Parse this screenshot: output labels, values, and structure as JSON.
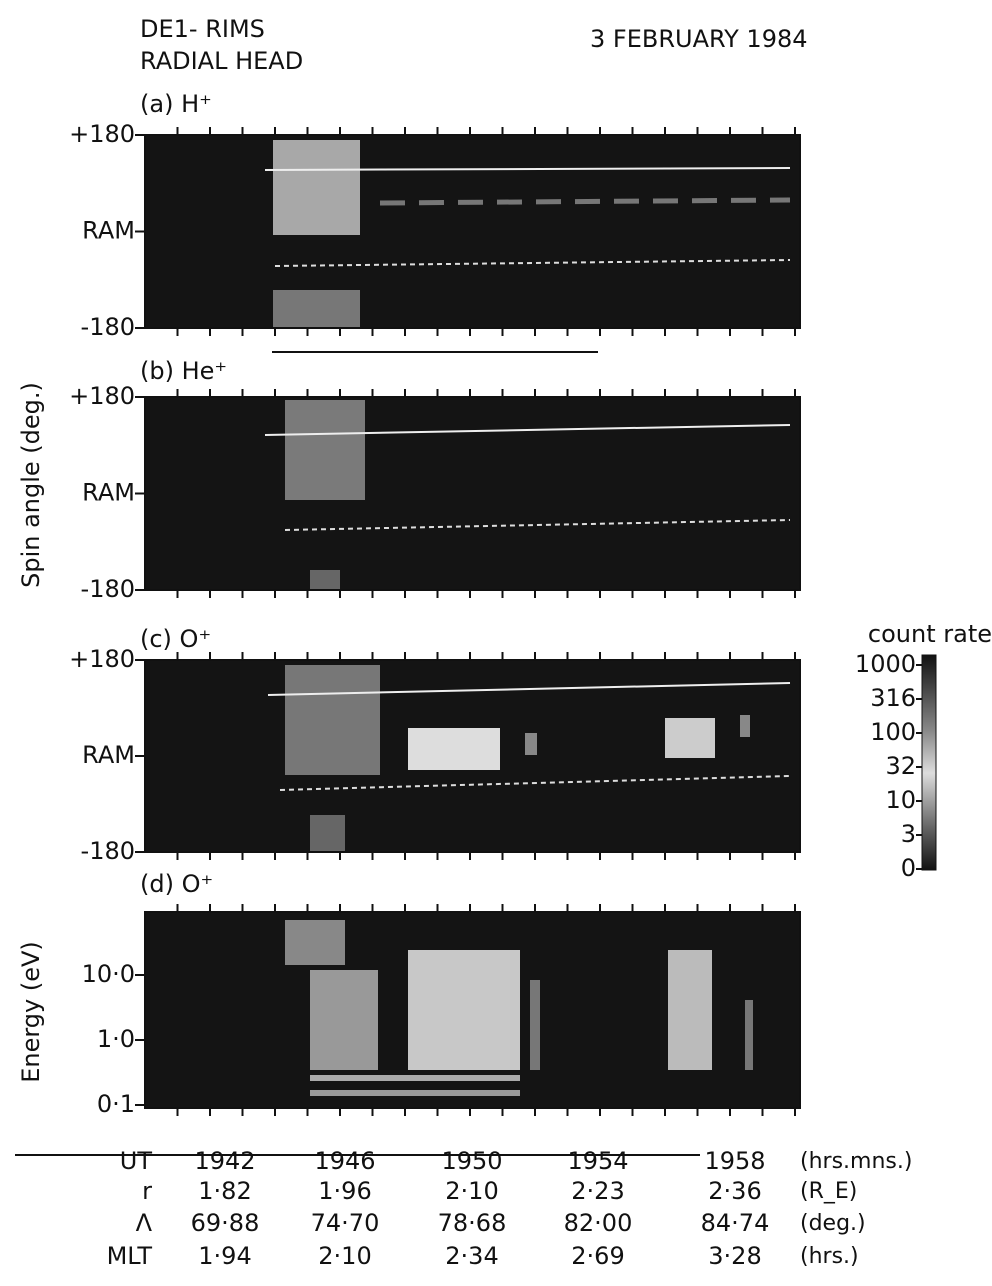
{
  "header": {
    "instrument": "DE1- RIMS",
    "head": "RADIAL HEAD",
    "date": "3 FEBRUARY 1984"
  },
  "panels": [
    {
      "label": "(a) H⁺",
      "yticks": [
        "+180",
        "RAM",
        "-180"
      ]
    },
    {
      "label": "(b) He⁺",
      "yticks": [
        "+180",
        "RAM",
        "-180"
      ]
    },
    {
      "label": "(c) O⁺",
      "yticks": [
        "+180",
        "RAM",
        "-180"
      ]
    },
    {
      "label": "(d) O⁺",
      "yticks": [
        "10·0",
        "1·0",
        "0·1"
      ]
    }
  ],
  "spin_axis_label": "Spin angle (deg.)",
  "energy_axis_label": "Energy (eV)",
  "colorbar": {
    "title": "count rate",
    "labels": [
      "1000",
      "316",
      "100",
      "32",
      "10",
      "3",
      "0"
    ]
  },
  "table": {
    "rows": [
      [
        "UT",
        "1942",
        "1946",
        "1950",
        "1954",
        "1958",
        "(hrs.mns.)"
      ],
      [
        "r",
        "1·82",
        "1·96",
        "2·10",
        "2·23",
        "2·36",
        "(R_E)"
      ],
      [
        "Λ",
        "69·88",
        "74·70",
        "78·68",
        "82·00",
        "84·74",
        "(deg.)"
      ],
      [
        "MLT",
        "1·94",
        "2·10",
        "2·34",
        "2·69",
        "3·28",
        "(hrs.)"
      ]
    ]
  }
}
